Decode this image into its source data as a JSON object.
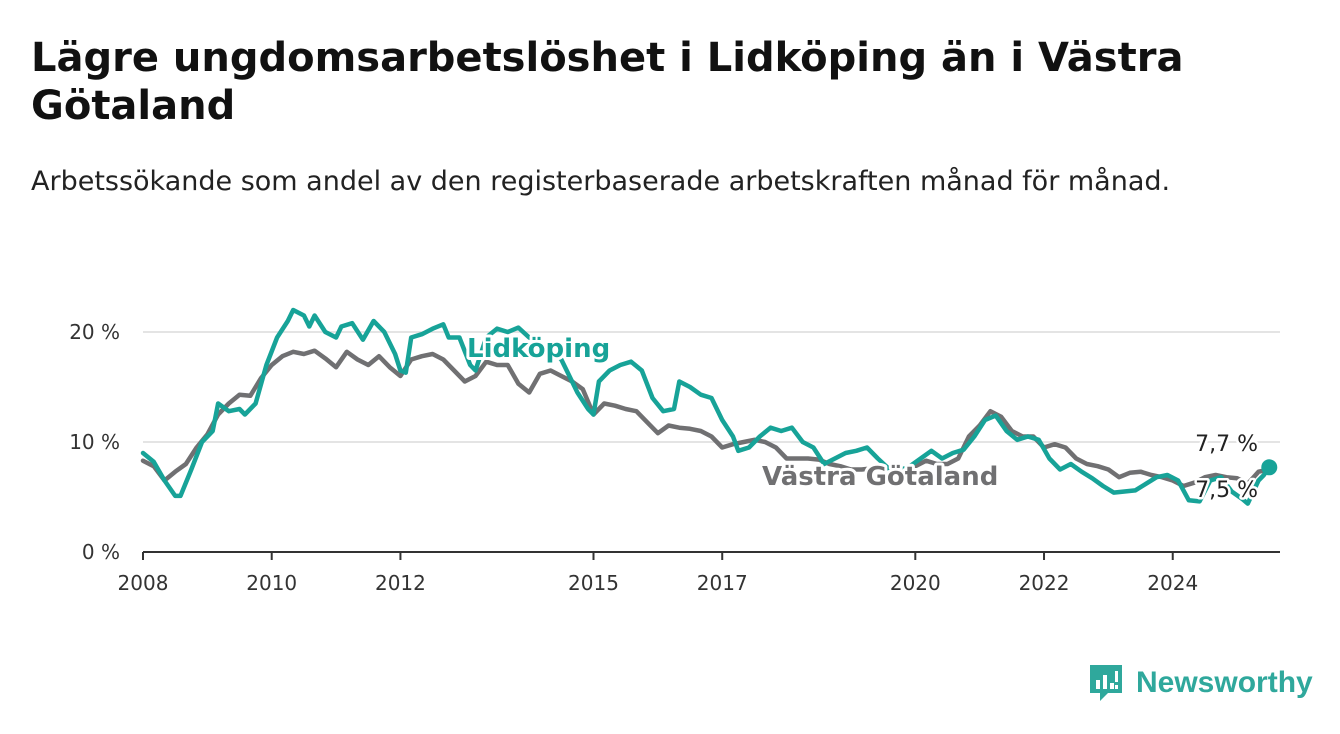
{
  "title": "Lägre ungdomsarbetslöshet i Lidköping än i Västra Götaland",
  "subtitle": "Arbetssökande som andel av den registerbaserade arbetskraften månad för månad.",
  "brand": {
    "name": "Newsworthy",
    "color": "#2fa89c",
    "icon": "newsworthy-logo-icon"
  },
  "chart_data": {
    "type": "line",
    "title": "Lägre ungdomsarbetslöshet i Lidköping än i Västra Götaland",
    "subtitle": "Arbetssökande som andel av den registerbaserade arbetskraften månad för månad.",
    "xlabel": "",
    "ylabel": "",
    "xlim": [
      "2008-01",
      "2025-09"
    ],
    "ylim": [
      0,
      20
    ],
    "yticks": [
      0,
      10,
      20
    ],
    "ytick_labels": [
      "0 %",
      "10 %",
      "20 %"
    ],
    "xticks": [
      "2008",
      "2010",
      "2012",
      "2015",
      "2017",
      "2020",
      "2022",
      "2024"
    ],
    "grid": true,
    "legend": "inline",
    "series": [
      {
        "name": "Lidköping",
        "color": "#17a398",
        "end_label": "7,7 %",
        "points": [
          [
            "2008-01",
            9.0
          ],
          [
            "2008-03",
            8.2
          ],
          [
            "2008-05",
            6.5
          ],
          [
            "2008-07",
            5.1
          ],
          [
            "2008-08",
            5.1
          ],
          [
            "2008-10",
            7.5
          ],
          [
            "2008-12",
            10.0
          ],
          [
            "2009-02",
            11.0
          ],
          [
            "2009-03",
            13.5
          ],
          [
            "2009-05",
            12.8
          ],
          [
            "2009-07",
            13.0
          ],
          [
            "2009-08",
            12.5
          ],
          [
            "2009-10",
            13.5
          ],
          [
            "2009-12",
            17.0
          ],
          [
            "2010-02",
            19.5
          ],
          [
            "2010-04",
            21.0
          ],
          [
            "2010-05",
            22.0
          ],
          [
            "2010-07",
            21.5
          ],
          [
            "2010-08",
            20.5
          ],
          [
            "2010-09",
            21.5
          ],
          [
            "2010-11",
            20.0
          ],
          [
            "2011-01",
            19.5
          ],
          [
            "2011-02",
            20.5
          ],
          [
            "2011-04",
            20.8
          ],
          [
            "2011-06",
            19.3
          ],
          [
            "2011-08",
            21.0
          ],
          [
            "2011-10",
            20.0
          ],
          [
            "2011-12",
            18.0
          ],
          [
            "2012-01",
            16.5
          ],
          [
            "2012-02",
            16.3
          ],
          [
            "2012-03",
            19.5
          ],
          [
            "2012-05",
            19.8
          ],
          [
            "2012-07",
            20.3
          ],
          [
            "2012-09",
            20.7
          ],
          [
            "2012-10",
            19.5
          ],
          [
            "2012-12",
            19.5
          ],
          [
            "2013-02",
            17.0
          ],
          [
            "2013-03",
            16.5
          ],
          [
            "2013-05",
            19.5
          ],
          [
            "2013-07",
            20.3
          ],
          [
            "2013-09",
            20.0
          ],
          [
            "2013-11",
            20.4
          ],
          [
            "2014-01",
            19.5
          ],
          [
            "2014-03",
            19.0
          ],
          [
            "2014-05",
            18.5
          ],
          [
            "2014-07",
            17.5
          ],
          [
            "2014-08",
            16.5
          ],
          [
            "2014-10",
            14.5
          ],
          [
            "2014-12",
            13.0
          ],
          [
            "2015-01",
            12.5
          ],
          [
            "2015-02",
            15.5
          ],
          [
            "2015-04",
            16.5
          ],
          [
            "2015-06",
            17.0
          ],
          [
            "2015-08",
            17.3
          ],
          [
            "2015-10",
            16.5
          ],
          [
            "2015-12",
            14.0
          ],
          [
            "2016-02",
            12.8
          ],
          [
            "2016-04",
            13.0
          ],
          [
            "2016-05",
            15.5
          ],
          [
            "2016-07",
            15.0
          ],
          [
            "2016-09",
            14.3
          ],
          [
            "2016-11",
            14.0
          ],
          [
            "2017-01",
            12.0
          ],
          [
            "2017-03",
            10.5
          ],
          [
            "2017-04",
            9.2
          ],
          [
            "2017-06",
            9.5
          ],
          [
            "2017-08",
            10.5
          ],
          [
            "2017-10",
            11.3
          ],
          [
            "2017-12",
            11.0
          ],
          [
            "2018-02",
            11.3
          ],
          [
            "2018-04",
            10.0
          ],
          [
            "2018-06",
            9.5
          ],
          [
            "2018-08",
            8.0
          ],
          [
            "2018-10",
            8.5
          ],
          [
            "2018-12",
            9.0
          ],
          [
            "2019-02",
            9.2
          ],
          [
            "2019-04",
            9.5
          ],
          [
            "2019-06",
            8.5
          ],
          [
            "2019-08",
            7.6
          ],
          [
            "2019-10",
            7.4
          ],
          [
            "2019-12",
            7.8
          ],
          [
            "2020-02",
            8.5
          ],
          [
            "2020-04",
            9.2
          ],
          [
            "2020-06",
            8.5
          ],
          [
            "2020-08",
            9.0
          ],
          [
            "2020-10",
            9.3
          ],
          [
            "2020-12",
            10.5
          ],
          [
            "2021-02",
            12.0
          ],
          [
            "2021-04",
            12.4
          ],
          [
            "2021-06",
            11.0
          ],
          [
            "2021-08",
            10.2
          ],
          [
            "2021-10",
            10.5
          ],
          [
            "2021-12",
            10.2
          ],
          [
            "2022-02",
            8.5
          ],
          [
            "2022-04",
            7.5
          ],
          [
            "2022-06",
            8.0
          ],
          [
            "2022-08",
            7.3
          ],
          [
            "2022-10",
            6.7
          ],
          [
            "2022-12",
            6.0
          ],
          [
            "2023-02",
            5.4
          ],
          [
            "2023-04",
            5.5
          ],
          [
            "2023-06",
            5.6
          ],
          [
            "2023-08",
            6.2
          ],
          [
            "2023-10",
            6.8
          ],
          [
            "2023-12",
            7.0
          ],
          [
            "2024-02",
            6.5
          ],
          [
            "2024-04",
            4.7
          ],
          [
            "2024-06",
            4.6
          ],
          [
            "2024-08",
            6.5
          ],
          [
            "2024-10",
            6.8
          ],
          [
            "2024-12",
            5.5
          ],
          [
            "2025-02",
            4.8
          ],
          [
            "2025-03",
            4.4
          ],
          [
            "2025-05",
            6.5
          ],
          [
            "2025-06",
            7.0
          ],
          [
            "2025-07",
            7.7
          ]
        ]
      },
      {
        "name": "Västra Götaland",
        "color": "#707072",
        "end_label": "7,5 %",
        "points": [
          [
            "2008-01",
            8.3
          ],
          [
            "2008-03",
            7.8
          ],
          [
            "2008-05",
            6.5
          ],
          [
            "2008-07",
            7.3
          ],
          [
            "2008-09",
            8.0
          ],
          [
            "2008-11",
            9.5
          ],
          [
            "2009-01",
            10.7
          ],
          [
            "2009-03",
            12.5
          ],
          [
            "2009-05",
            13.5
          ],
          [
            "2009-07",
            14.3
          ],
          [
            "2009-09",
            14.2
          ],
          [
            "2009-11",
            15.8
          ],
          [
            "2010-01",
            17.0
          ],
          [
            "2010-03",
            17.8
          ],
          [
            "2010-05",
            18.2
          ],
          [
            "2010-07",
            18.0
          ],
          [
            "2010-09",
            18.3
          ],
          [
            "2010-11",
            17.6
          ],
          [
            "2011-01",
            16.8
          ],
          [
            "2011-03",
            18.2
          ],
          [
            "2011-05",
            17.5
          ],
          [
            "2011-07",
            17.0
          ],
          [
            "2011-09",
            17.8
          ],
          [
            "2011-11",
            16.8
          ],
          [
            "2012-01",
            16.0
          ],
          [
            "2012-03",
            17.5
          ],
          [
            "2012-05",
            17.8
          ],
          [
            "2012-07",
            18.0
          ],
          [
            "2012-09",
            17.5
          ],
          [
            "2012-11",
            16.5
          ],
          [
            "2013-01",
            15.5
          ],
          [
            "2013-03",
            16.0
          ],
          [
            "2013-05",
            17.3
          ],
          [
            "2013-07",
            17.0
          ],
          [
            "2013-09",
            17.0
          ],
          [
            "2013-11",
            15.3
          ],
          [
            "2014-01",
            14.5
          ],
          [
            "2014-03",
            16.2
          ],
          [
            "2014-05",
            16.5
          ],
          [
            "2014-07",
            16.0
          ],
          [
            "2014-09",
            15.5
          ],
          [
            "2014-11",
            14.8
          ],
          [
            "2015-01",
            12.5
          ],
          [
            "2015-03",
            13.5
          ],
          [
            "2015-05",
            13.3
          ],
          [
            "2015-07",
            13.0
          ],
          [
            "2015-09",
            12.8
          ],
          [
            "2015-11",
            11.8
          ],
          [
            "2016-01",
            10.8
          ],
          [
            "2016-03",
            11.5
          ],
          [
            "2016-05",
            11.3
          ],
          [
            "2016-07",
            11.2
          ],
          [
            "2016-09",
            11.0
          ],
          [
            "2016-11",
            10.5
          ],
          [
            "2017-01",
            9.5
          ],
          [
            "2017-03",
            9.8
          ],
          [
            "2017-05",
            10.0
          ],
          [
            "2017-07",
            10.2
          ],
          [
            "2017-09",
            10.0
          ],
          [
            "2017-11",
            9.5
          ],
          [
            "2018-01",
            8.5
          ],
          [
            "2018-03",
            8.5
          ],
          [
            "2018-05",
            8.5
          ],
          [
            "2018-07",
            8.4
          ],
          [
            "2018-09",
            8.0
          ],
          [
            "2018-11",
            7.8
          ],
          [
            "2019-01",
            7.5
          ],
          [
            "2019-03",
            7.5
          ],
          [
            "2019-05",
            7.6
          ],
          [
            "2019-07",
            7.8
          ],
          [
            "2019-09",
            7.5
          ],
          [
            "2019-11",
            7.5
          ],
          [
            "2020-01",
            7.8
          ],
          [
            "2020-03",
            8.3
          ],
          [
            "2020-05",
            8.0
          ],
          [
            "2020-07",
            8.0
          ],
          [
            "2020-09",
            8.5
          ],
          [
            "2020-11",
            10.5
          ],
          [
            "2021-01",
            11.5
          ],
          [
            "2021-03",
            12.8
          ],
          [
            "2021-05",
            12.3
          ],
          [
            "2021-07",
            11.0
          ],
          [
            "2021-09",
            10.5
          ],
          [
            "2021-11",
            10.5
          ],
          [
            "2022-01",
            9.5
          ],
          [
            "2022-03",
            9.8
          ],
          [
            "2022-05",
            9.5
          ],
          [
            "2022-07",
            8.5
          ],
          [
            "2022-09",
            8.0
          ],
          [
            "2022-11",
            7.8
          ],
          [
            "2023-01",
            7.5
          ],
          [
            "2023-03",
            6.8
          ],
          [
            "2023-05",
            7.2
          ],
          [
            "2023-07",
            7.3
          ],
          [
            "2023-09",
            7.0
          ],
          [
            "2023-11",
            6.8
          ],
          [
            "2024-01",
            6.5
          ],
          [
            "2024-03",
            6.0
          ],
          [
            "2024-05",
            6.3
          ],
          [
            "2024-07",
            6.8
          ],
          [
            "2024-09",
            7.0
          ],
          [
            "2024-11",
            6.8
          ],
          [
            "2025-01",
            6.7
          ],
          [
            "2025-03",
            6.2
          ],
          [
            "2025-05",
            7.3
          ],
          [
            "2025-07",
            7.5
          ]
        ]
      }
    ]
  }
}
